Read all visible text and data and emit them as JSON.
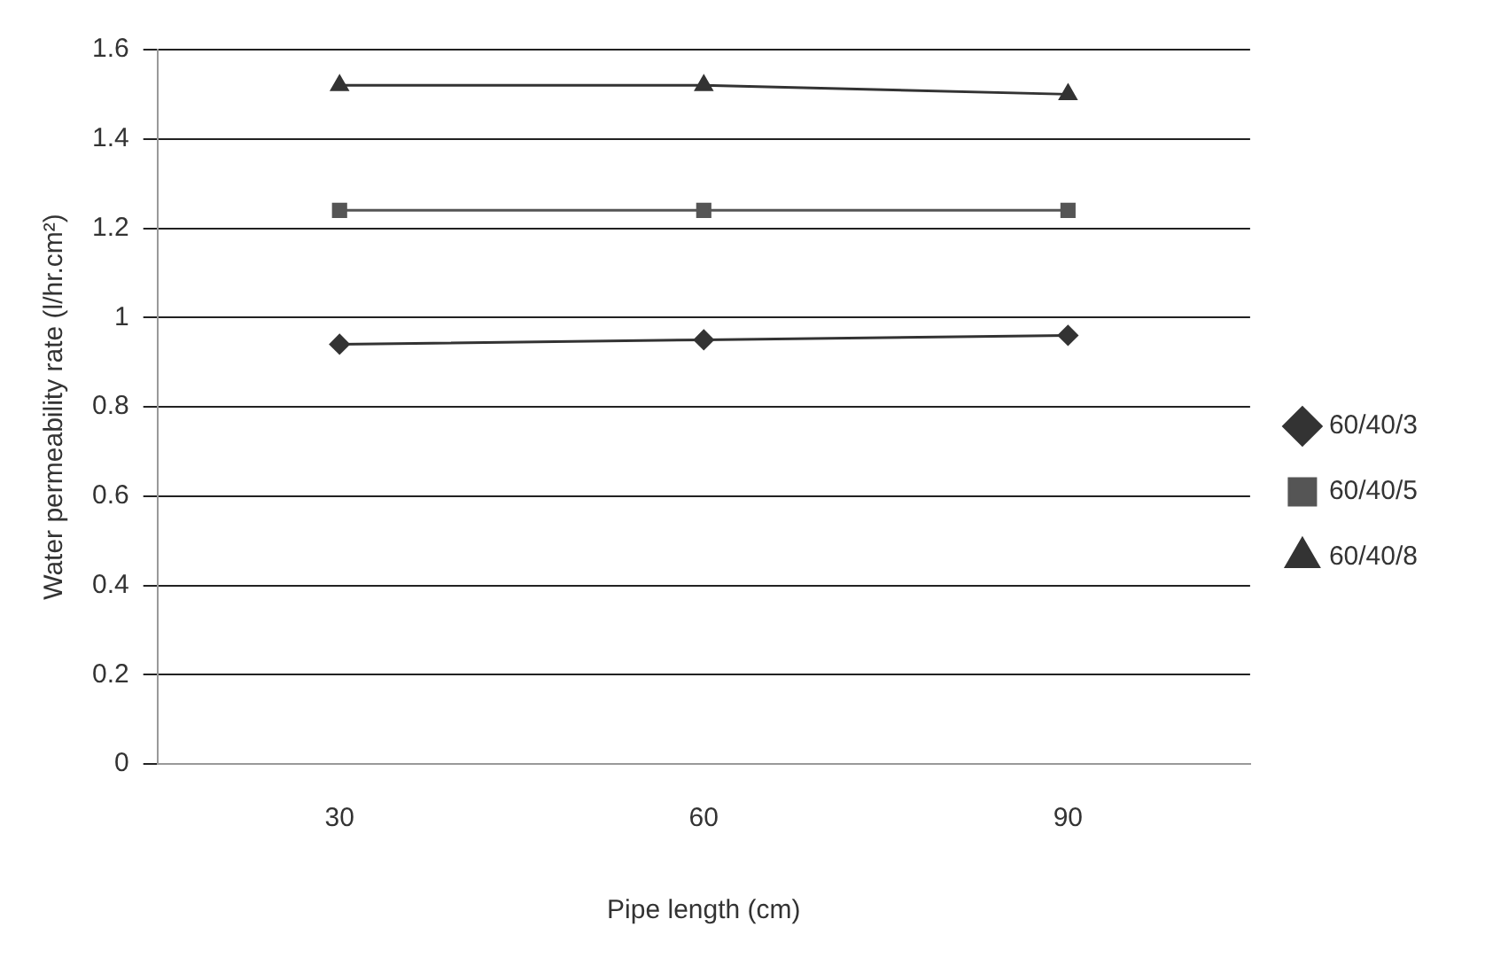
{
  "chart_data": {
    "type": "line",
    "xlabel": "Pipe length (cm)",
    "ylabel": "Water permeability rate (l/hr.cm²)",
    "categories": [
      "30",
      "60",
      "90"
    ],
    "series": [
      {
        "name": "60/40/3",
        "color": "#333333",
        "marker": "diamond",
        "values": [
          0.94,
          0.95,
          0.96
        ]
      },
      {
        "name": "60/40/5",
        "color": "#555555",
        "marker": "square",
        "values": [
          1.24,
          1.24,
          1.24
        ]
      },
      {
        "name": "60/40/8",
        "color": "#333333",
        "marker": "triangle",
        "values": [
          1.52,
          1.52,
          1.5
        ]
      }
    ],
    "ylim": [
      0,
      1.6
    ],
    "yticks": [
      0,
      0.2,
      0.4,
      0.6,
      0.8,
      1,
      1.2,
      1.4,
      1.6
    ],
    "grid": "y",
    "legend": "right",
    "line_style": "solid"
  }
}
